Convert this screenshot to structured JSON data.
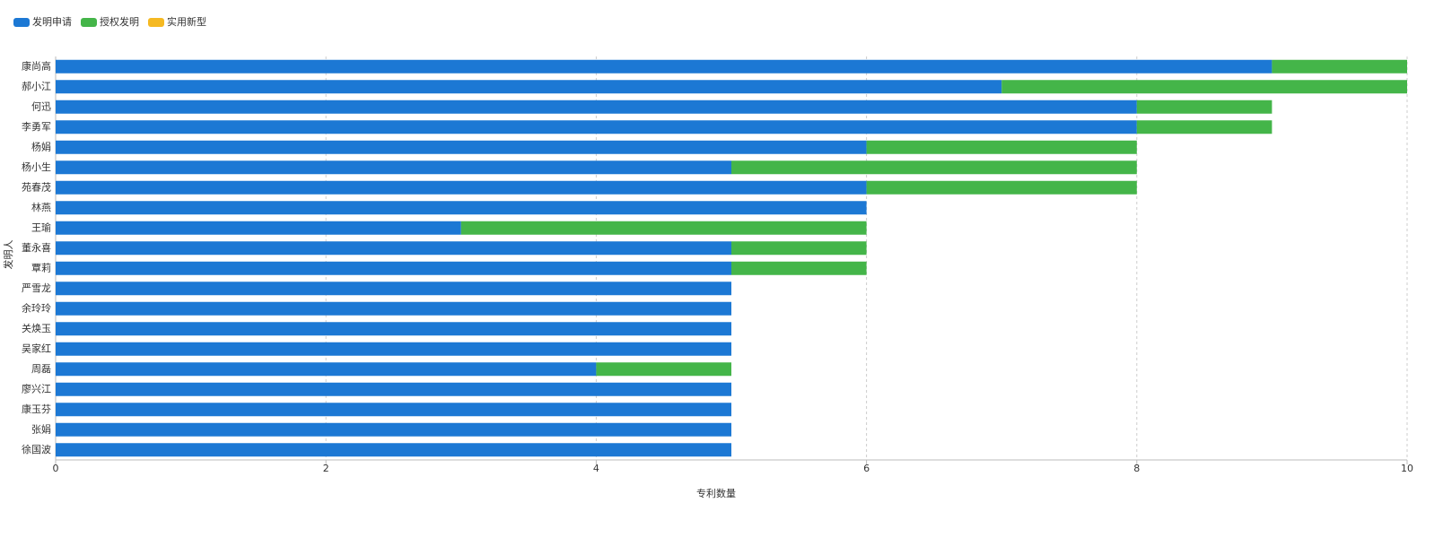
{
  "chart_data": {
    "type": "stacked-bar-horizontal",
    "categories": [
      "康尚高",
      "郝小江",
      "何迅",
      "李勇军",
      "杨娟",
      "杨小生",
      "苑春茂",
      "林燕",
      "王瑜",
      "董永喜",
      "覃莉",
      "严雪龙",
      "余玲玲",
      "关焕玉",
      "吴家红",
      "周磊",
      "廖兴江",
      "康玉芬",
      "张娟",
      "徐国波"
    ],
    "series": [
      {
        "name": "发明申请",
        "color": "#1c78d4",
        "values": [
          9,
          7,
          8,
          8,
          6,
          5,
          6,
          6,
          3,
          5,
          5,
          5,
          5,
          5,
          5,
          4,
          5,
          5,
          5,
          5
        ]
      },
      {
        "name": "授权发明",
        "color": "#44b549",
        "values": [
          1,
          3,
          1,
          1,
          2,
          3,
          2,
          0,
          3,
          1,
          1,
          0,
          0,
          0,
          0,
          1,
          0,
          0,
          0,
          0
        ]
      },
      {
        "name": "实用新型",
        "color": "#f5b922",
        "values": [
          0,
          0,
          0,
          0,
          0,
          0,
          0,
          0,
          0,
          0,
          0,
          0,
          0,
          0,
          0,
          0,
          0,
          0,
          0,
          0
        ]
      }
    ],
    "xlabel": "专利数量",
    "ylabel": "发明人",
    "xlim": [
      0,
      10
    ],
    "xticks": [
      0,
      2,
      4,
      6,
      8,
      10
    ],
    "grid": true,
    "legend": "top-left"
  }
}
